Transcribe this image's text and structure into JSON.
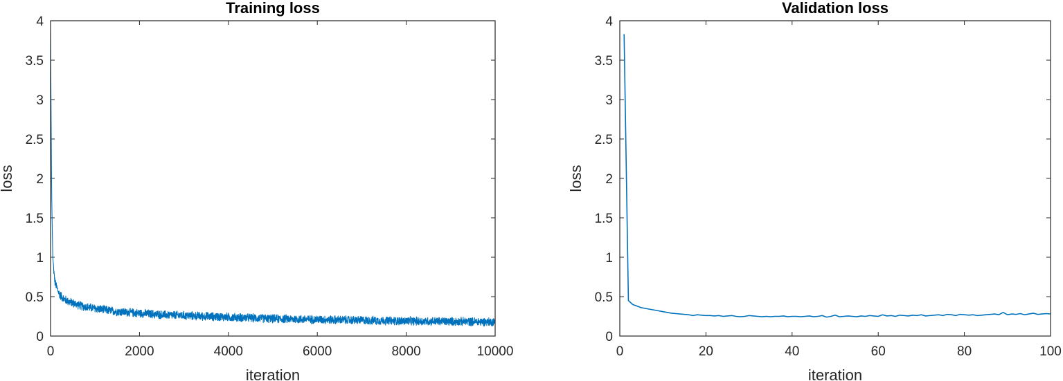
{
  "chart_data": [
    {
      "type": "line",
      "title": "Training loss",
      "xlabel": "iteration",
      "ylabel": "loss",
      "xlim": [
        0,
        10000
      ],
      "ylim": [
        0,
        4
      ],
      "xticks": [
        0,
        2000,
        4000,
        6000,
        8000,
        10000
      ],
      "yticks": [
        0,
        0.5,
        1,
        1.5,
        2,
        2.5,
        3,
        3.5,
        4
      ],
      "ytick_labels": [
        "0",
        "0.5",
        "1",
        "1.5",
        "2",
        "2.5",
        "3",
        "3.5",
        "4"
      ],
      "grid": false,
      "color": "#0072BD",
      "series": [
        {
          "x": [
            0,
            10,
            25,
            50,
            80,
            100,
            150,
            200,
            300,
            400,
            500,
            700,
            1000,
            1500,
            2000,
            2500,
            3000,
            4000,
            5000,
            6000,
            7000,
            8000,
            9000,
            10000
          ],
          "values": [
            3.85,
            3.0,
            1.8,
            1.0,
            0.78,
            0.68,
            0.6,
            0.53,
            0.47,
            0.44,
            0.42,
            0.38,
            0.35,
            0.31,
            0.29,
            0.27,
            0.26,
            0.24,
            0.22,
            0.21,
            0.2,
            0.19,
            0.185,
            0.18
          ],
          "noise_amplitude": 0.06
        }
      ]
    },
    {
      "type": "line",
      "title": "Validation loss",
      "xlabel": "iteration",
      "ylabel": "loss",
      "xlim": [
        0,
        100
      ],
      "ylim": [
        0,
        4
      ],
      "xticks": [
        0,
        20,
        40,
        60,
        80,
        100
      ],
      "yticks": [
        0,
        0.5,
        1,
        1.5,
        2,
        2.5,
        3,
        3.5,
        4
      ],
      "ytick_labels": [
        "0",
        "0.5",
        "1",
        "1.5",
        "2",
        "2.5",
        "3",
        "3.5",
        "4"
      ],
      "grid": false,
      "color": "#0072BD",
      "series": [
        {
          "x": [
            1,
            2,
            3,
            4,
            5,
            6,
            7,
            8,
            9,
            10,
            11,
            12,
            13,
            14,
            15,
            16,
            17,
            18,
            19,
            20,
            21,
            22,
            23,
            24,
            25,
            26,
            27,
            28,
            29,
            30,
            31,
            32,
            33,
            34,
            35,
            36,
            37,
            38,
            39,
            40,
            41,
            42,
            43,
            44,
            45,
            46,
            47,
            48,
            49,
            50,
            51,
            52,
            53,
            54,
            55,
            56,
            57,
            58,
            59,
            60,
            61,
            62,
            63,
            64,
            65,
            66,
            67,
            68,
            69,
            70,
            71,
            72,
            73,
            74,
            75,
            76,
            77,
            78,
            79,
            80,
            81,
            82,
            83,
            84,
            85,
            86,
            87,
            88,
            89,
            90,
            91,
            92,
            93,
            94,
            95,
            96,
            97,
            98,
            99,
            100
          ],
          "values": [
            3.83,
            0.45,
            0.4,
            0.38,
            0.36,
            0.35,
            0.34,
            0.33,
            0.32,
            0.31,
            0.3,
            0.29,
            0.285,
            0.28,
            0.275,
            0.27,
            0.26,
            0.27,
            0.265,
            0.26,
            0.26,
            0.255,
            0.26,
            0.25,
            0.255,
            0.26,
            0.25,
            0.245,
            0.25,
            0.26,
            0.255,
            0.25,
            0.245,
            0.25,
            0.245,
            0.25,
            0.25,
            0.255,
            0.245,
            0.25,
            0.25,
            0.245,
            0.25,
            0.255,
            0.245,
            0.25,
            0.26,
            0.24,
            0.25,
            0.265,
            0.245,
            0.25,
            0.255,
            0.25,
            0.245,
            0.255,
            0.25,
            0.26,
            0.255,
            0.25,
            0.27,
            0.255,
            0.26,
            0.25,
            0.265,
            0.26,
            0.255,
            0.265,
            0.26,
            0.27,
            0.255,
            0.26,
            0.265,
            0.27,
            0.26,
            0.275,
            0.27,
            0.26,
            0.275,
            0.27,
            0.265,
            0.27,
            0.26,
            0.265,
            0.27,
            0.275,
            0.28,
            0.27,
            0.3,
            0.27,
            0.28,
            0.275,
            0.285,
            0.27,
            0.28,
            0.29,
            0.275,
            0.28,
            0.285,
            0.28
          ]
        }
      ]
    }
  ]
}
